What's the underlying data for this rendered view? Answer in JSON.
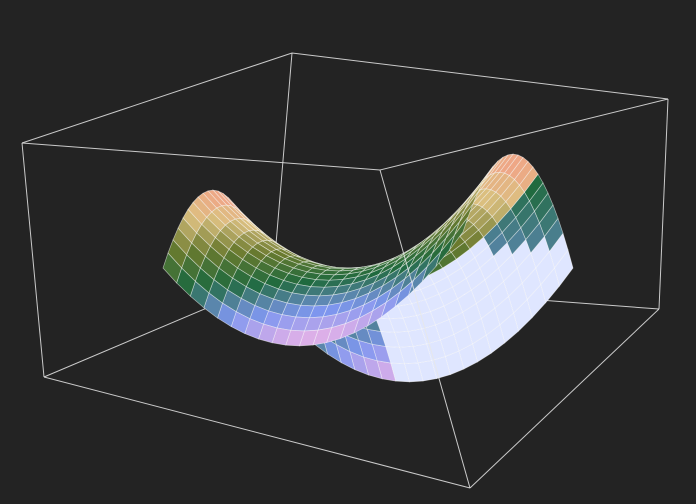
{
  "scene": {
    "background": "#232323",
    "box_color": "#e8e8e8",
    "grid_color": "#ffffff",
    "surface": {
      "kind": "saddle",
      "equation_hint": "z = x^2 - y^2",
      "grid_lines_u": 22,
      "grid_lines_v": 22,
      "color_map": [
        "#f7b6e6",
        "#7f97f0",
        "#1f6a3e",
        "#6a7a2e",
        "#dcc080",
        "#f3a088"
      ],
      "light_side_color": "#dfe6ff"
    }
  }
}
